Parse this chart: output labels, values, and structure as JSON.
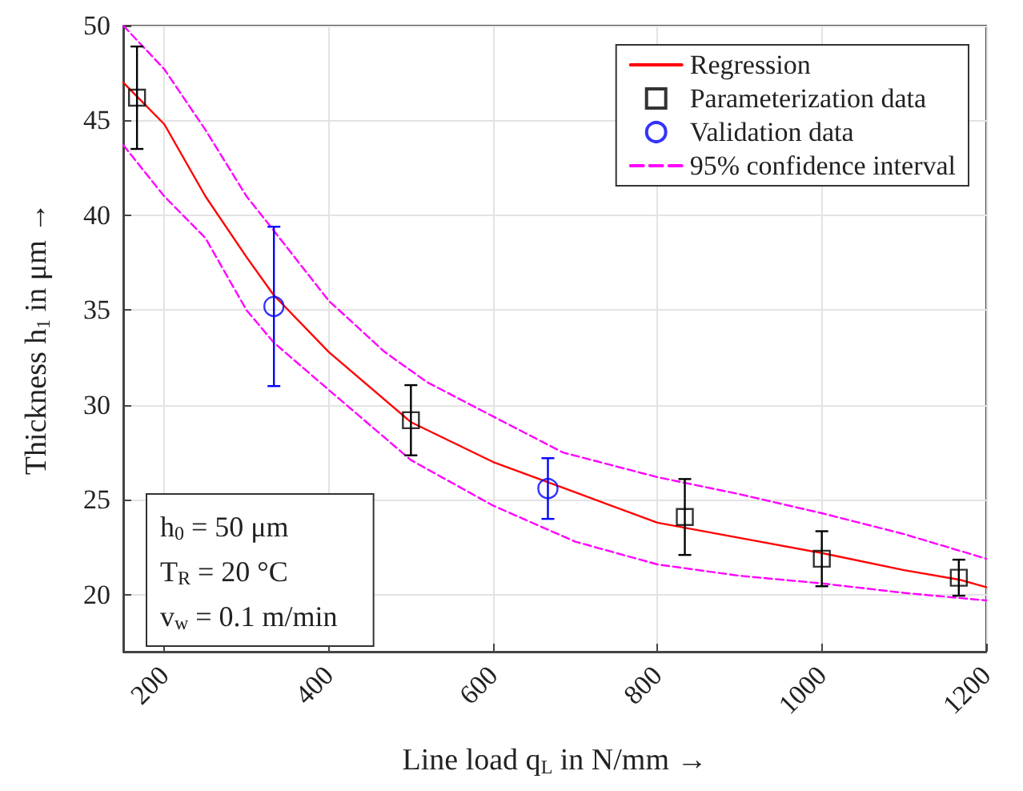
{
  "chart_data": {
    "type": "line",
    "xlabel": "Line load q$_{L}$ in N/mm →",
    "ylabel": "Thickness h$_{1}$ in μm →",
    "xlim": [
      150,
      1200
    ],
    "xticks": [
      200,
      400,
      600,
      800,
      1000,
      1200
    ],
    "ylim": [
      17,
      50
    ],
    "yticks": [
      20,
      25,
      30,
      35,
      40,
      45,
      50
    ],
    "grid": true,
    "legend": "top right",
    "annotations": [
      "h$_{0}$ = 50 μm",
      "T$_{R}$ = 20 °C",
      "v$_{w}$ = 0.1 m/min"
    ],
    "series": [
      {
        "name": "Regression",
        "color": "#ff0000",
        "line_style": "solid",
        "marker": "none",
        "x": [
          150,
          200,
          250,
          300,
          333,
          400,
          500,
          600,
          700,
          800,
          900,
          1000,
          1100,
          1167,
          1200
        ],
        "values": [
          47.0,
          44.8,
          41.0,
          37.8,
          35.8,
          32.8,
          29.1,
          27.0,
          25.4,
          23.8,
          23.0,
          22.2,
          21.3,
          20.8,
          20.4
        ]
      },
      {
        "name": "Parameterization data",
        "type": "scatter",
        "color": "#000000",
        "marker": "square",
        "x": [
          166.7,
          500,
          833.3,
          1000,
          1166.7
        ],
        "values": [
          46.2,
          29.2,
          24.1,
          21.9,
          20.9
        ],
        "errors": [
          2.7,
          1.85,
          2.0,
          1.45,
          0.95
        ]
      },
      {
        "name": "Validation data",
        "type": "scatter",
        "color": "#0000ff",
        "marker": "circle",
        "x": [
          333.3,
          666.7
        ],
        "values": [
          35.2,
          25.6
        ],
        "errors": [
          4.2,
          1.6
        ]
      },
      {
        "name": "95% confidence interval",
        "color": "#ff00ff",
        "line_style": "dashed",
        "marker": "none",
        "x": [
          150,
          200,
          250,
          300,
          333,
          400,
          468,
          520,
          600,
          685,
          800,
          900,
          1000,
          1100,
          1200
        ],
        "values": [
          50.0,
          47.7,
          44.5,
          41.0,
          39.2,
          35.5,
          32.8,
          31.2,
          29.4,
          27.5,
          26.2,
          25.3,
          24.3,
          23.2,
          21.9
        ]
      },
      {
        "color": "#ff00ff",
        "line_style": "dashed",
        "marker": "none",
        "x": [
          150,
          200,
          250,
          300,
          333,
          400,
          500,
          600,
          700,
          800,
          900,
          1000,
          1100,
          1200
        ],
        "values": [
          43.7,
          41.0,
          38.8,
          35.0,
          33.3,
          30.8,
          27.1,
          24.7,
          22.8,
          21.6,
          21.0,
          20.6,
          20.1,
          19.7
        ]
      }
    ]
  }
}
